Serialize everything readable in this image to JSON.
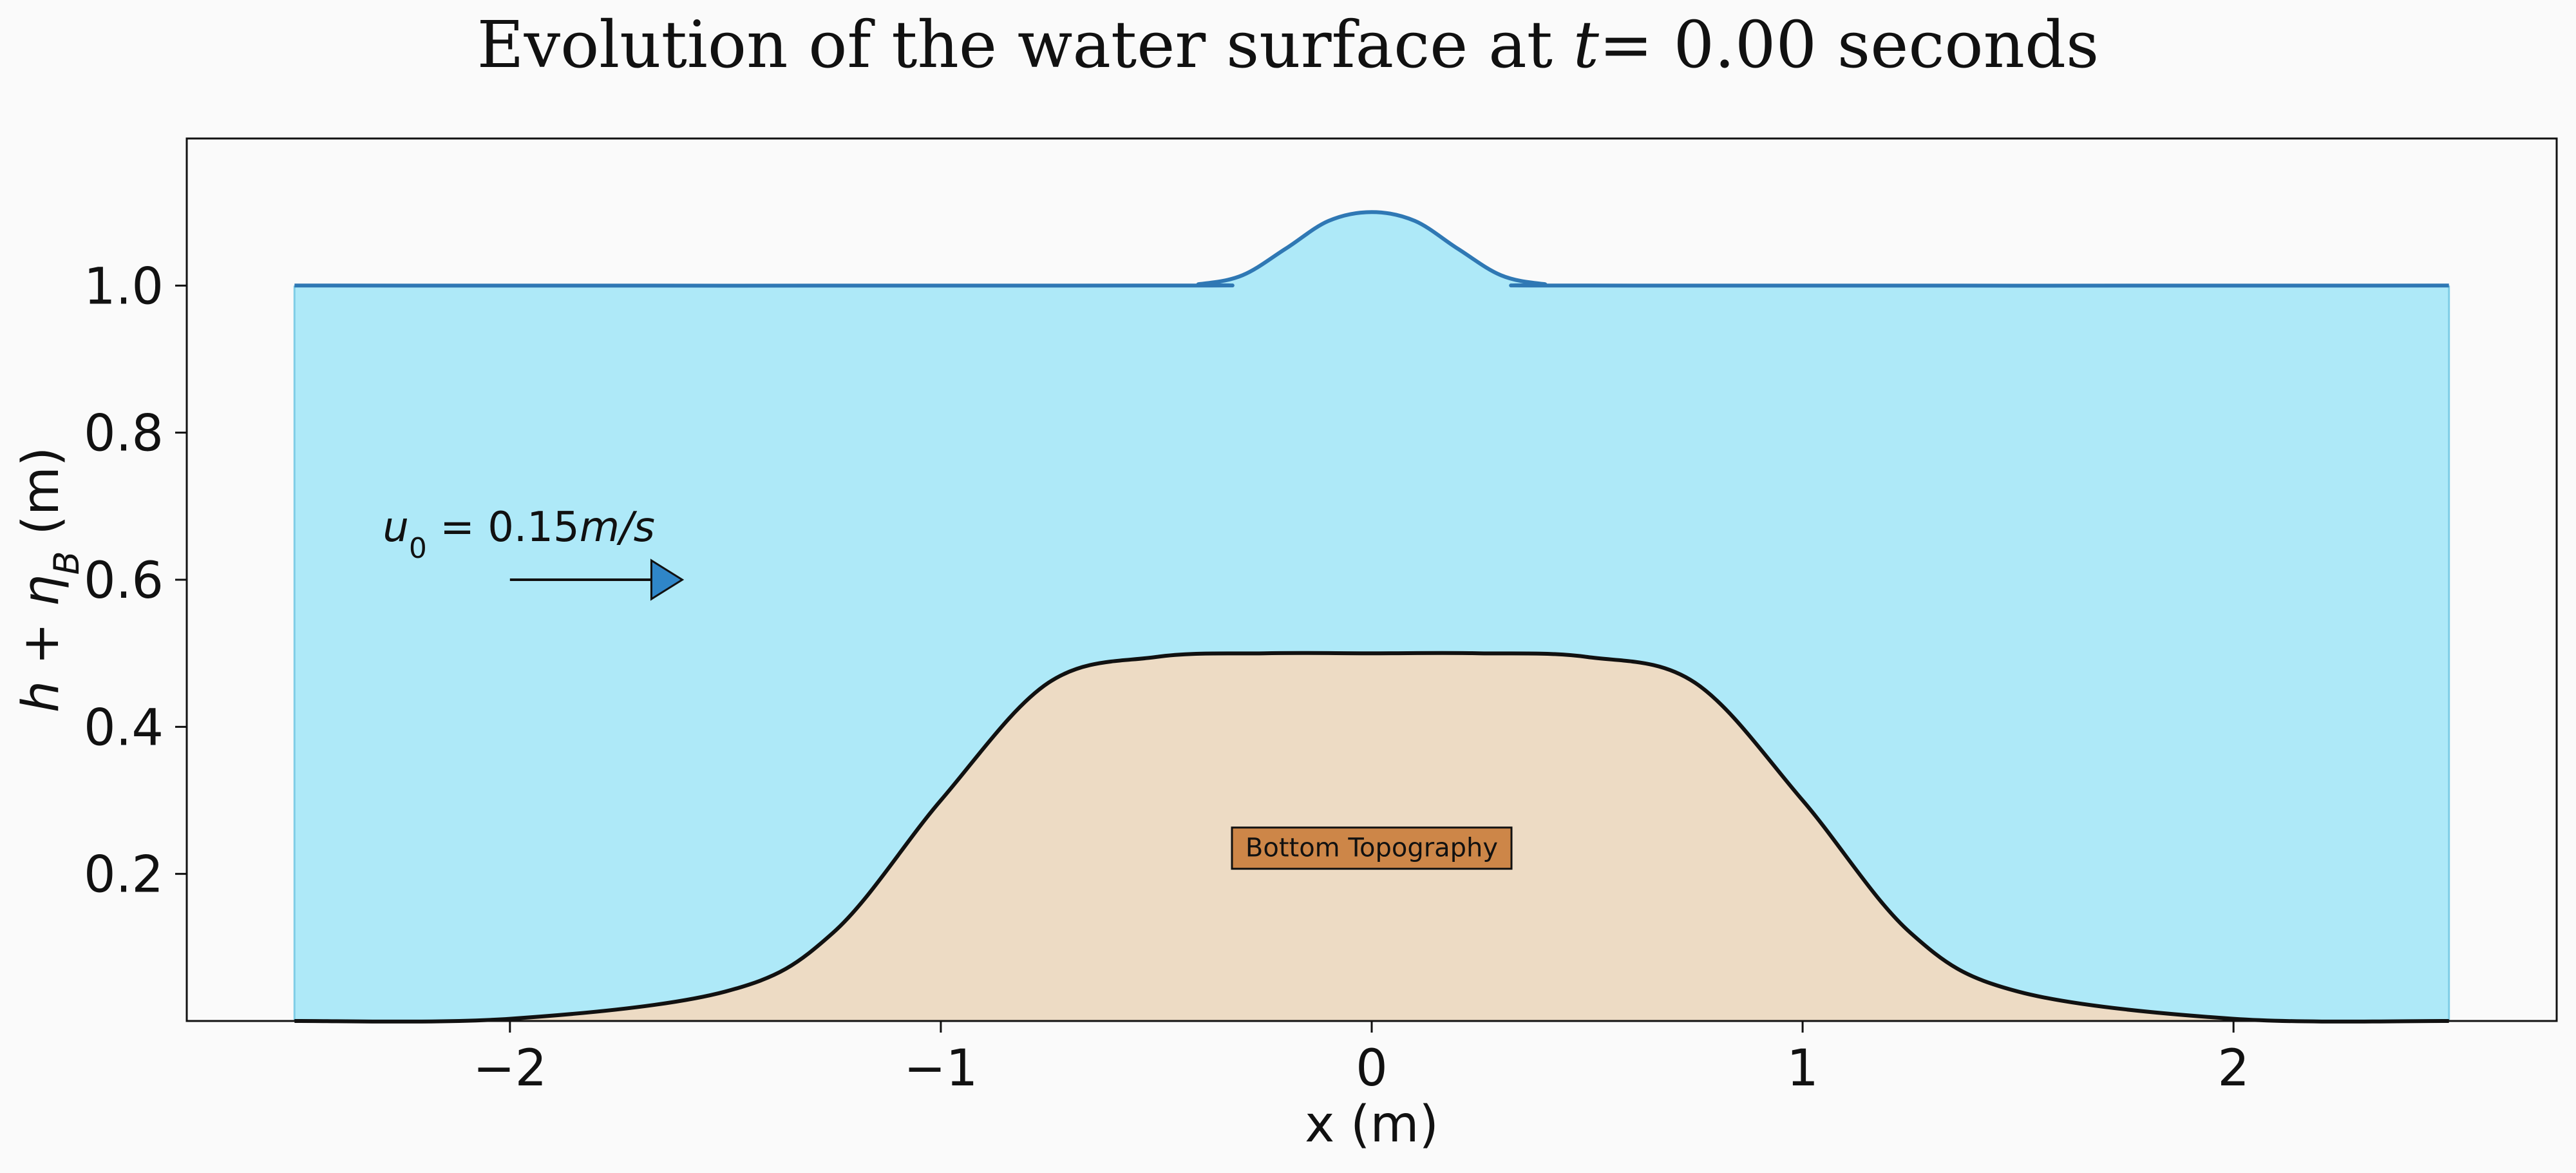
{
  "chart_data": {
    "type": "area",
    "title_prefix": "Evolution of the water surface at ",
    "title_time_symbol": "t",
    "title_time_value": "= 0.00",
    "title_suffix": " seconds",
    "xlabel": "x (m)",
    "ylabel_h": "h",
    "ylabel_plus": " + ",
    "ylabel_eta": "η",
    "ylabel_sub": "B",
    "ylabel_units": " (m)",
    "xlim": [
      -2.75,
      2.75
    ],
    "ylim": [
      0,
      1.2
    ],
    "x_ticks": [
      -2,
      -1,
      0,
      1,
      2
    ],
    "x_tick_labels": [
      "−2",
      "−1",
      "0",
      "1",
      "2"
    ],
    "y_ticks": [
      0.2,
      0.4,
      0.6,
      0.8,
      1.0
    ],
    "y_tick_labels": [
      "0.2",
      "0.4",
      "0.6",
      "0.8",
      "1.0"
    ],
    "grid": false,
    "series": [
      {
        "x": [
          -2.5,
          -2.0,
          -1.5,
          -1.25,
          -1.0,
          -0.75,
          -0.5,
          -0.25,
          0.0,
          0.25,
          0.5,
          0.75,
          1.0,
          1.25,
          1.5,
          2.0,
          2.5
        ],
        "values": [
          0.0,
          0.003,
          0.04,
          0.12,
          0.3,
          0.46,
          0.495,
          0.5,
          0.5,
          0.5,
          0.495,
          0.46,
          0.3,
          0.12,
          0.04,
          0.003,
          0.0
        ]
      },
      {
        "x": [
          -2.5,
          -0.5,
          -0.4,
          -0.3,
          -0.2,
          -0.1,
          0.0,
          0.1,
          0.2,
          0.3,
          0.4,
          0.5,
          2.5
        ],
        "values": [
          1.0,
          1.0,
          1.002,
          1.014,
          1.05,
          1.088,
          1.1,
          1.088,
          1.05,
          1.014,
          1.002,
          1.0,
          1.0
        ]
      }
    ],
    "colors": {
      "water_fill": "#aee9f8",
      "surface_line": "#2f78b4",
      "bottom_fill": "#eddbc4",
      "bottom_line": "#111111",
      "arrow_head": "#2f86c8",
      "label_box": "#cd8648"
    },
    "annotations": {
      "velocity": {
        "symbol": "u",
        "sub": "0",
        "value": " = 0.15",
        "unit": "m/s",
        "arrow_from": [
          -2.0,
          0.6
        ],
        "arrow_to": [
          -1.6,
          0.6
        ]
      },
      "bottom_label": {
        "text": "Bottom Topography",
        "at": [
          0.0,
          0.235
        ]
      }
    }
  }
}
